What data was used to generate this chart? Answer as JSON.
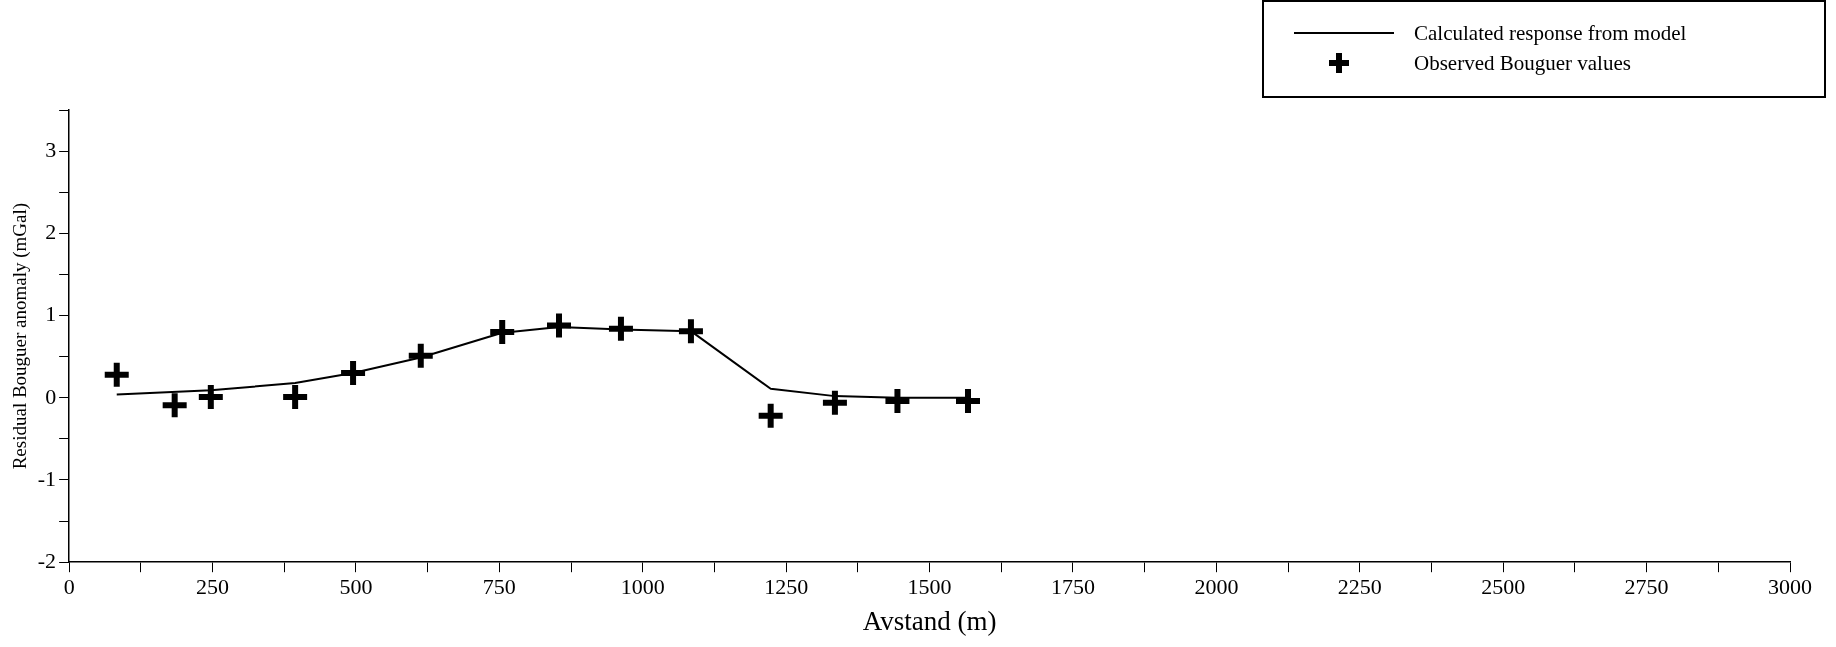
{
  "chart_data": {
    "type": "scatter",
    "xlabel": "Avstand (m)",
    "ylabel": "Residual Bouguer anomaly (mGal)",
    "xlim": [
      0,
      3000
    ],
    "ylim": [
      -2,
      3.5
    ],
    "xticks": [
      0,
      {
        "value": 125,
        "label": null
      },
      250,
      {
        "value": 375,
        "label": null
      },
      500,
      {
        "value": 625,
        "label": null
      },
      750,
      {
        "value": 875,
        "label": null
      },
      1000,
      {
        "value": 1125,
        "label": null
      },
      1250,
      {
        "value": 1375,
        "label": null
      },
      1500,
      {
        "value": 1625,
        "label": null
      },
      1750,
      {
        "value": 1875,
        "label": null
      },
      2000,
      {
        "value": 2125,
        "label": null
      },
      2250,
      {
        "value": 2375,
        "label": null
      },
      2500,
      {
        "value": 2625,
        "label": null
      },
      2750,
      {
        "value": 2875,
        "label": null
      },
      3000
    ],
    "yticks": [
      -2,
      {
        "value": -1.5,
        "label": null
      },
      -1,
      {
        "value": -0.5,
        "label": null
      },
      0,
      {
        "value": 0.5,
        "label": null
      },
      1,
      {
        "value": 1.5,
        "label": null
      },
      2,
      {
        "value": 2.5,
        "label": null
      },
      3,
      {
        "value": 3.5,
        "label": null
      }
    ],
    "grid": false,
    "legend": "top right",
    "series": [
      {
        "name": "Calculated response from model",
        "type": "line",
        "color": "#000000",
        "marker": "none",
        "line_style": "solid",
        "x": [
          83,
          247,
          394,
          495,
          613,
          755,
          854,
          962,
          1084,
          1223,
          1335,
          1444,
          1567
        ],
        "values": [
          0.04,
          0.09,
          0.18,
          0.3,
          0.49,
          0.79,
          0.86,
          0.83,
          0.81,
          0.11,
          0.02,
          0,
          0
        ]
      },
      {
        "name": "Observed Bouguer values",
        "type": "scatter",
        "color": "#000000",
        "marker": "cross",
        "x": [
          83,
          184,
          247,
          394,
          495,
          613,
          755,
          854,
          962,
          1084,
          1223,
          1335,
          1444,
          1567
        ],
        "values": [
          0.28,
          -0.09,
          0.01,
          0.01,
          0.3,
          0.51,
          0.8,
          0.88,
          0.84,
          0.81,
          -0.22,
          -0.06,
          -0.04,
          -0.04
        ]
      }
    ]
  }
}
